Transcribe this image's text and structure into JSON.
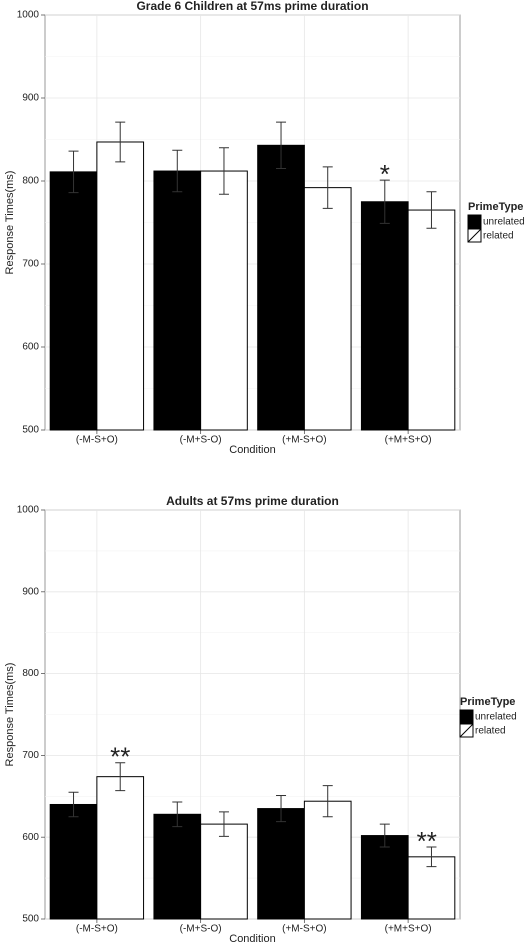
{
  "chart_data": [
    {
      "type": "bar",
      "title": "Grade 6 Children at 57ms prime duration",
      "x_label": "Condition",
      "y_label": "Response Times(ms)",
      "categories": [
        "(-M-S+O)",
        "(-M+S-O)",
        "(+M-S+O)",
        "(+M+S+O)"
      ],
      "series": [
        {
          "name": "unrelated",
          "color": "#000000",
          "values": [
            811,
            812,
            843,
            775
          ],
          "errors": [
            25,
            25,
            28,
            26
          ]
        },
        {
          "name": "related",
          "color": "#ffffff",
          "values": [
            847,
            812,
            792,
            765
          ],
          "errors": [
            24,
            28,
            25,
            22
          ]
        }
      ],
      "ylim": [
        500,
        1000
      ],
      "yticks": [
        500,
        600,
        700,
        800,
        900,
        1000
      ],
      "grid": true,
      "legend_title": "PrimeType",
      "annotations": [
        "*"
      ]
    },
    {
      "type": "bar",
      "title": "Adults at 57ms prime duration",
      "x_label": "Condition",
      "y_label": "Response Times(ms)",
      "categories": [
        "(-M-S+O)",
        "(-M+S-O)",
        "(+M-S+O)",
        "(+M+S+O)"
      ],
      "series": [
        {
          "name": "unrelated",
          "color": "#000000",
          "values": [
            640,
            628,
            635,
            602
          ],
          "errors": [
            15,
            15,
            16,
            14
          ]
        },
        {
          "name": "related",
          "color": "#ffffff",
          "values": [
            674,
            616,
            644,
            576
          ],
          "errors": [
            17,
            15,
            19,
            12
          ]
        }
      ],
      "ylim": [
        500,
        1000
      ],
      "yticks": [
        500,
        600,
        700,
        800,
        900,
        1000
      ],
      "grid": true,
      "legend_title": "PrimeType",
      "annotations": [
        "**",
        "**"
      ]
    }
  ]
}
